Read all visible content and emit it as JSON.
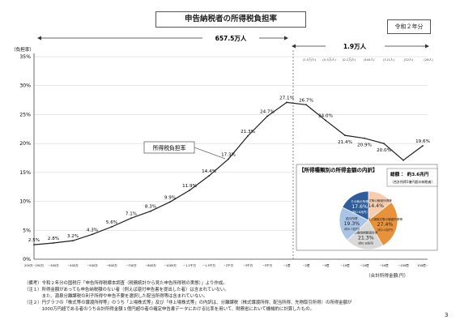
{
  "page": {
    "title": "申告納税者の所得税負担率",
    "era": "令和２年分",
    "left_count": "657.5万人",
    "right_count": "1.9万人",
    "page_number": "3",
    "unit_note": "（合計所得金額:円）"
  },
  "notes": [
    "（備考）令和２年分の国税庁「申告所得税標本調査（税務統計から見た申告所得税の実態）」より作成。",
    "（注１）所得金額があっても申告納税額のない者（例えば還付申告書を提出した者）は含まれていない。",
    "　　　　また、源泉分離課税の利子所得や申告不要を選択した配当所得等は含まれていない。",
    "（注２）円グラフの「株式等の譲渡所得等」のうち「上場株式等」及び「非上場株式等」の内訳は、分離課税（株式譲渡所得、配当所得、先物取引所得）の所得金額が",
    "　　　　1000万円超である者のうち合計所得金額１億円超の者の確定申告書データにおける比率を用いて、財務省において機械的に計算したもの。"
  ],
  "chart_data": {
    "type": "line",
    "ylabel": "（負担率）",
    "ylim": [
      0,
      35
    ],
    "yticks": [
      "0%",
      "5%",
      "10%",
      "15%",
      "20%",
      "25%",
      "30%",
      "35%"
    ],
    "categories": [
      "200万~250万",
      "~300万",
      "~400万",
      "~500万",
      "~600万",
      "~700万",
      "~800万",
      "~1000万",
      "~1.2千万",
      "~1.5千万",
      "~2千万",
      "~3千万",
      "~5千万",
      "~1億",
      "~2億",
      "~5億",
      "~10億",
      "~20億",
      "~50億",
      "~100億",
      "100億~"
    ],
    "series": [
      {
        "name": "所得税負担率",
        "values": [
          2.5,
          2.8,
          3.2,
          4.3,
          5.6,
          7.1,
          8.3,
          9.9,
          11.9,
          14.4,
          17.3,
          21.3,
          24.7,
          27.1,
          26.7,
          24.0,
          21.4,
          20.9,
          20.0,
          17.1,
          19.6
        ],
        "value_labels": [
          "2.5%",
          "2.8%",
          "3.2%",
          "4.3%",
          "5.6%",
          "7.1%",
          "8.3%",
          "9.9%",
          "11.9%",
          "14.4%",
          "17.3%",
          "21.3%",
          "24.7%",
          "27.1%",
          "26.7%",
          "24.0%",
          "21.4%",
          "20.9%",
          "20.0%",
          "17.1%",
          "19.6%"
        ]
      }
    ],
    "right_counts": [
      "(1.5万人)",
      "(0.3万人)",
      "(0.1万人)",
      "(340人)",
      "(111人)",
      "(32人)",
      "(26人)"
    ],
    "color": "#1f1f1f",
    "grid": true
  },
  "pie": {
    "title": "【所得種類別の所得金額の内訳】",
    "total_label": "総額 ： 約3.6兆円",
    "total_sub": "（合計所得1億円超の納税者）",
    "slices": [
      {
        "label": "上場株式等の譲渡所得等",
        "pct": "14.4%",
        "value": 14.4,
        "color": "#f7cdb0"
      },
      {
        "label": "非上場株式等の譲渡所得等",
        "pct": "27.4%",
        "value": 27.4,
        "color": "#e8923c",
        "sub": "（約1.0兆円）"
      },
      {
        "label": "分離長期譲渡所得",
        "pct": "21.3%",
        "value": 21.3,
        "color": "#d9d9d9",
        "sub": "（約0.8兆円）"
      },
      {
        "label": "給与所得",
        "pct": "19.3%",
        "value": 19.3,
        "color": "#a9c4e6",
        "sub": "（約0.7兆円）"
      },
      {
        "label": "その他の所得",
        "pct": "17.6%",
        "value": 17.6,
        "color": "#2e5d9a",
        "sub": "（約0.6兆円）"
      }
    ]
  }
}
